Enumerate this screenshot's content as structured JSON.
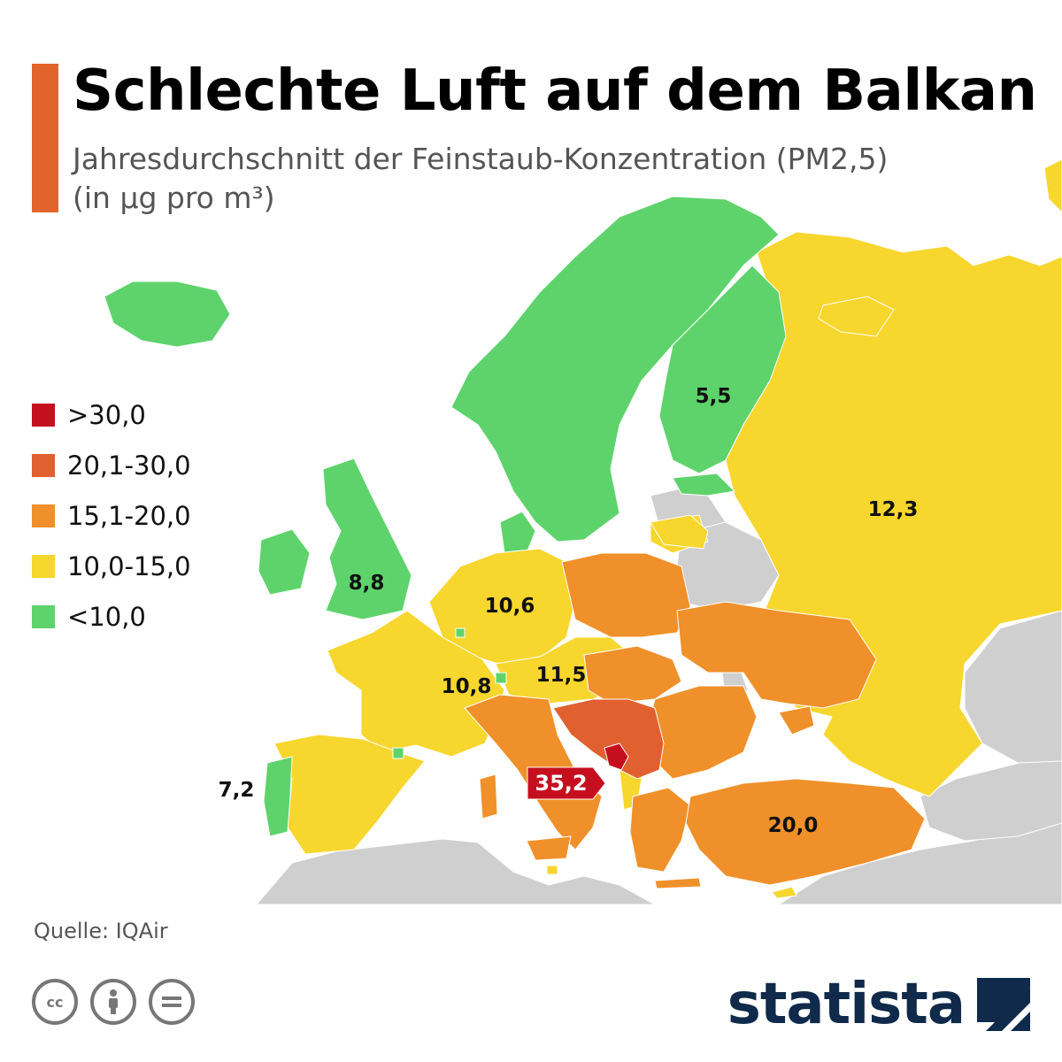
{
  "header": {
    "title": "Schlechte Luft auf dem Balkan",
    "subtitle_line1": "Jahresdurchschnitt der Feinstaub-Konzentration (PM2,5)",
    "subtitle_line2": "(in µg pro m³)",
    "accent_color": "#e2632b"
  },
  "colors": {
    "red": "#c50f1f",
    "dark_orange": "#e1602f",
    "orange": "#f0902a",
    "yellow": "#f7d62e",
    "green": "#5ed36c",
    "no_data_gray": "#cfcfcf"
  },
  "legend": [
    {
      "label": ">30,0",
      "color": "#c50f1f"
    },
    {
      "label": "20,1-30,0",
      "color": "#e1602f"
    },
    {
      "label": "15,1-20,0",
      "color": "#f0902a"
    },
    {
      "label": "10,0-15,0",
      "color": "#f7d62e"
    },
    {
      "label": "<10,0",
      "color": "#5ed36c"
    }
  ],
  "value_labels": [
    {
      "text": "5,5",
      "region": "finland"
    },
    {
      "text": "12,3",
      "region": "russia"
    },
    {
      "text": "8,8",
      "region": "uk"
    },
    {
      "text": "10,6",
      "region": "germany"
    },
    {
      "text": "11,5",
      "region": "austria"
    },
    {
      "text": "10,8",
      "region": "france"
    },
    {
      "text": "7,2",
      "region": "portugal"
    },
    {
      "text": "35,2",
      "region": "montenegro",
      "highlight": true
    },
    {
      "text": "20,0",
      "region": "turkey"
    }
  ],
  "footer": {
    "source": "Quelle: IQAir",
    "license_icons": [
      "cc-icon",
      "attribution-icon",
      "no-derivatives-icon"
    ],
    "logo_text": "statista",
    "logo_color": "#0f2a4a"
  }
}
